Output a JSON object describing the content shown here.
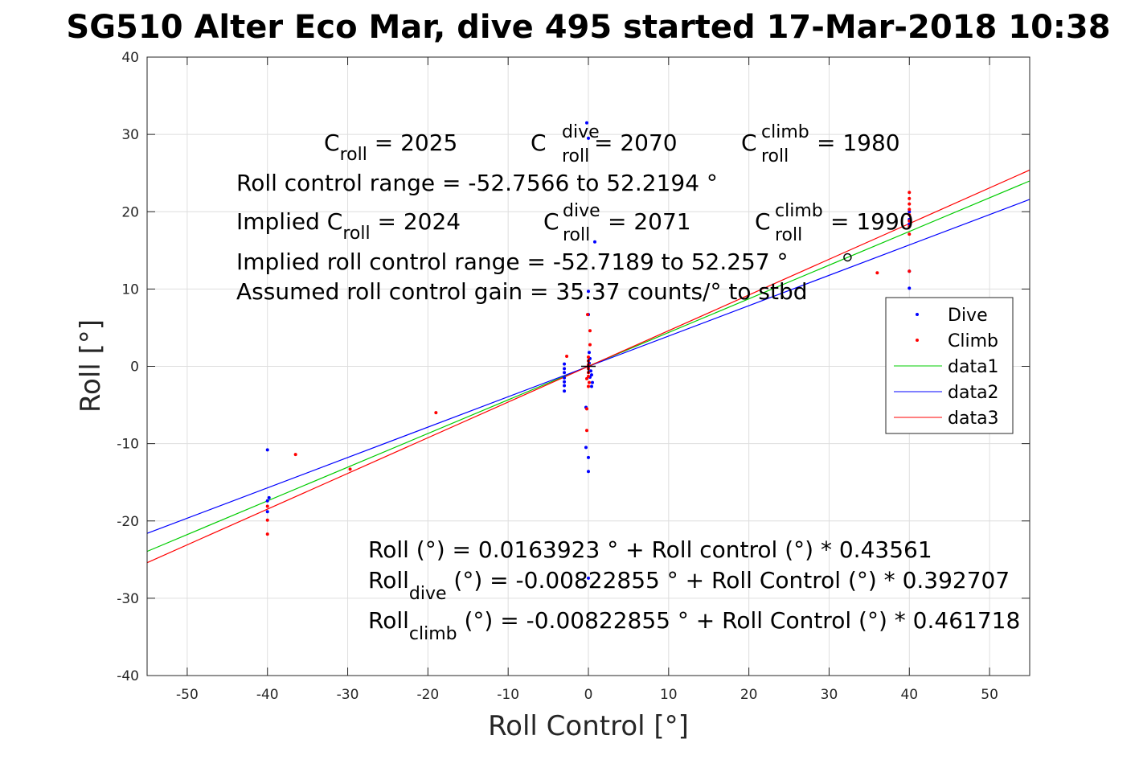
{
  "chart_data": {
    "type": "scatter",
    "title": "SG510 Alter Eco Mar, dive 495 started 17-Mar-2018 10:38",
    "xlabel": "Roll Control [°]",
    "ylabel": "Roll [°]",
    "xlim": [
      -55,
      55
    ],
    "ylim": [
      -40,
      40
    ],
    "xticks": [
      -50,
      -40,
      -30,
      -20,
      -10,
      0,
      10,
      20,
      30,
      40,
      50
    ],
    "yticks": [
      -40,
      -30,
      -20,
      -10,
      0,
      10,
      20,
      30,
      40
    ],
    "grid": true,
    "legend_placement": "right",
    "colors": {
      "dive": "#0000ff",
      "climb": "#ff0000",
      "data1": "#00cc00",
      "data2": "#0000ff",
      "data3": "#ff0000"
    },
    "series": [
      {
        "name": "Dive",
        "kind": "points",
        "color": "#0000ff",
        "points": [
          [
            -40,
            -10.8
          ],
          [
            -39.8,
            -17
          ],
          [
            -40,
            -17.4
          ],
          [
            -40,
            -18.8
          ],
          [
            -0.2,
            31.5
          ],
          [
            0,
            29.5
          ],
          [
            0.8,
            16.1
          ],
          [
            0,
            9.7
          ],
          [
            0,
            6.7
          ],
          [
            0.1,
            1.8
          ],
          [
            0.2,
            1.0
          ],
          [
            0.1,
            0.4
          ],
          [
            0,
            0
          ],
          [
            0.3,
            -0.6
          ],
          [
            0.4,
            -1.1
          ],
          [
            0.2,
            -1.4
          ],
          [
            0.5,
            -2.1
          ],
          [
            0.4,
            -2.6
          ],
          [
            -3,
            0.3
          ],
          [
            -3,
            -0.3
          ],
          [
            -3,
            -0.8
          ],
          [
            -3,
            -1.5
          ],
          [
            -3,
            -2.0
          ],
          [
            -3,
            -2.5
          ],
          [
            -3,
            -3.2
          ],
          [
            -0.3,
            -5.3
          ],
          [
            -0.3,
            -10.5
          ],
          [
            0,
            -11.8
          ],
          [
            0,
            -13.6
          ],
          [
            40,
            12.3
          ],
          [
            40,
            10.1
          ],
          [
            40,
            20
          ],
          [
            40,
            19
          ],
          [
            40,
            18.4
          ],
          [
            0,
            -27.4
          ]
        ]
      },
      {
        "name": "Climb",
        "kind": "points",
        "color": "#ff0000",
        "points": [
          [
            -40,
            -18.1
          ],
          [
            -40,
            -19.9
          ],
          [
            -40,
            -21.7
          ],
          [
            -36.5,
            -11.4
          ],
          [
            -29.7,
            -13.3
          ],
          [
            -19,
            -6
          ],
          [
            -2.7,
            1.3
          ],
          [
            -0.1,
            6.7
          ],
          [
            0.2,
            4.6
          ],
          [
            0.2,
            2.8
          ],
          [
            0,
            1.2
          ],
          [
            0,
            0.7
          ],
          [
            0,
            0.2
          ],
          [
            0,
            -0.3
          ],
          [
            0,
            -0.8
          ],
          [
            0,
            -1.3
          ],
          [
            -0.2,
            -1.6
          ],
          [
            0.1,
            -2.1
          ],
          [
            0,
            -2.6
          ],
          [
            -0.2,
            -5.5
          ],
          [
            -0.2,
            -8.3
          ],
          [
            40,
            22.5
          ],
          [
            40,
            21.7
          ],
          [
            40,
            21
          ],
          [
            40,
            20.3
          ],
          [
            40,
            19.6
          ],
          [
            40,
            18.8
          ],
          [
            40,
            18.1
          ],
          [
            40,
            17.1
          ],
          [
            40,
            12.3
          ],
          [
            36,
            12.1
          ]
        ]
      },
      {
        "name": "data1",
        "kind": "line",
        "color": "#00cc00",
        "x": [
          -55,
          55
        ],
        "y": [
          -23.94,
          23.98
        ]
      },
      {
        "name": "data2",
        "kind": "line",
        "color": "#0000ff",
        "x": [
          -55,
          55
        ],
        "y": [
          -21.61,
          21.59
        ]
      },
      {
        "name": "data3",
        "kind": "line",
        "color": "#ff0000",
        "x": [
          -55,
          55
        ],
        "y": [
          -25.4,
          25.39
        ]
      }
    ],
    "markers": [
      {
        "shape": "plus",
        "x": 0,
        "y": 0
      },
      {
        "shape": "circle",
        "x": 32.3,
        "y": 14.1
      }
    ],
    "annotations": {
      "line1": {
        "c1": "C",
        "c1_sub": "roll",
        "c1_val": " = 2025",
        "c2": "C",
        "c2_sup": "dive",
        "c2_sub": "roll",
        "c2_val": " = 2070",
        "c3": "C",
        "c3_sup": "climb",
        "c3_sub": "roll",
        "c3_val": " = 1980"
      },
      "range": "Roll control range = -52.7566 to 52.2194 °",
      "implied": {
        "c1_pre": "Implied C",
        "c1_sub": "roll",
        "c1_val": " = 2024",
        "c2": "C",
        "c2_sup": "dive",
        "c2_sub": "roll",
        "c2_val": " = 2071",
        "c3": "C",
        "c3_sup": "climb",
        "c3_sub": "roll",
        "c3_val": " = 1990"
      },
      "implied_range": "Implied roll control range = -52.7189 to 52.257 °",
      "gain": "Assumed roll control gain = 35.37 counts/° to stbd",
      "fit1": "Roll (°) = 0.0163923 ° + Roll control (°) * 0.43561",
      "fit2": {
        "pre": "Roll",
        "sub": "dive",
        "post": " (°) = -0.00822855 ° + Roll Control (°) * 0.392707"
      },
      "fit3": {
        "pre": "Roll",
        "sub": "climb",
        "post": " (°) = -0.00822855 ° + Roll Control (°) * 0.461718"
      }
    }
  }
}
